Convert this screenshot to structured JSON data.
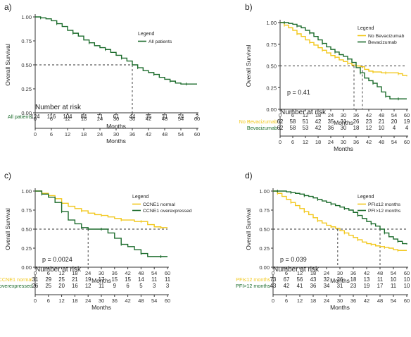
{
  "colors": {
    "green": "#1b6b2b",
    "yellow": "#f2c81d",
    "axis": "#333333",
    "ref": "#333333"
  },
  "panels": [
    {
      "id": "a",
      "letter": "a)",
      "ylabel": "Overall Survival",
      "xlabel": "Months",
      "legend_title": "Legend",
      "p_value": "",
      "risk_title": "Number at risk",
      "risk_xlabel": "Months",
      "risk_rows": [
        {
          "label": "All patients",
          "color": "green",
          "values": [
            "124",
            "116",
            "104",
            "84",
            "71",
            "61",
            "44",
            "35",
            "31",
            "24",
            "2"
          ]
        }
      ]
    },
    {
      "id": "b",
      "letter": "b)",
      "ylabel": "Overall Survival",
      "xlabel": "Months",
      "legend_title": "Legend",
      "p_value": "p = 0.41",
      "risk_title": "Number at risk",
      "risk_xlabel": "Months",
      "risk_rows": [
        {
          "label": "No Bevacizumab",
          "color": "yellow",
          "values": [
            "62",
            "58",
            "51",
            "42",
            "35",
            "31",
            "26",
            "23",
            "21",
            "20",
            "19"
          ]
        },
        {
          "label": "Bevacizumab",
          "color": "green",
          "values": [
            "62",
            "58",
            "53",
            "42",
            "36",
            "30",
            "18",
            "12",
            "10",
            "4",
            "4"
          ]
        }
      ]
    },
    {
      "id": "c",
      "letter": "c)",
      "ylabel": "Overall Survival",
      "xlabel": "Months",
      "legend_title": "Legend",
      "p_value": "p = 0.0024",
      "risk_title": "Number at risk",
      "risk_xlabel": "Months",
      "risk_rows": [
        {
          "label": "CCNE1 normal",
          "color": "yellow",
          "values": [
            "31",
            "29",
            "25",
            "21",
            "19",
            "17",
            "15",
            "15",
            "14",
            "11",
            "11"
          ]
        },
        {
          "label": "CCNE1 overexpressed",
          "color": "green",
          "values": [
            "26",
            "25",
            "20",
            "16",
            "12",
            "11",
            "9",
            "6",
            "5",
            "3",
            "3"
          ]
        }
      ]
    },
    {
      "id": "d",
      "letter": "d)",
      "ylabel": "Overall Survival",
      "xlabel": "Months",
      "legend_title": "Legend",
      "p_value": "p = 0.039",
      "risk_title": "Number at risk",
      "risk_xlabel": "Months",
      "risk_rows": [
        {
          "label": "PFI≤12 months",
          "color": "yellow",
          "values": [
            "73",
            "67",
            "56",
            "43",
            "32",
            "26",
            "18",
            "13",
            "11",
            "10",
            "10"
          ]
        },
        {
          "label": "PFI>12 months",
          "color": "green",
          "values": [
            "43",
            "42",
            "41",
            "36",
            "34",
            "31",
            "23",
            "19",
            "17",
            "11",
            "10"
          ]
        }
      ]
    }
  ],
  "chart_data": [
    {
      "type": "line",
      "panel": "a",
      "xlim": [
        0,
        60
      ],
      "ylim": [
        0,
        1
      ],
      "xticks": [
        0,
        6,
        12,
        18,
        24,
        30,
        36,
        42,
        48,
        54,
        60
      ],
      "yticks": [
        "0.00",
        "0.25",
        "0.50",
        "0.75",
        "1.00"
      ],
      "median_lines": [
        36
      ],
      "series": [
        {
          "name": "All patients",
          "color": "green",
          "x": [
            0,
            2,
            4,
            6,
            8,
            10,
            12,
            14,
            16,
            18,
            20,
            22,
            24,
            26,
            28,
            30,
            32,
            34,
            36,
            38,
            40,
            42,
            44,
            46,
            48,
            50,
            52,
            54,
            56,
            58,
            60
          ],
          "y": [
            1.0,
            0.99,
            0.98,
            0.96,
            0.93,
            0.9,
            0.86,
            0.83,
            0.8,
            0.76,
            0.73,
            0.7,
            0.68,
            0.66,
            0.63,
            0.6,
            0.57,
            0.54,
            0.5,
            0.47,
            0.44,
            0.42,
            0.4,
            0.37,
            0.35,
            0.33,
            0.31,
            0.3,
            0.3,
            0.3,
            0.3
          ]
        }
      ]
    },
    {
      "type": "line",
      "panel": "b",
      "xlim": [
        0,
        60
      ],
      "ylim": [
        0,
        1
      ],
      "xticks": [
        0,
        6,
        12,
        18,
        24,
        30,
        36,
        42,
        48,
        54,
        60
      ],
      "yticks": [
        "0.00",
        "0.25",
        "0.50",
        "0.75",
        "1.00"
      ],
      "median_lines": [
        35,
        39
      ],
      "series": [
        {
          "name": "No Bevacizumab",
          "color": "yellow",
          "x": [
            0,
            2,
            4,
            6,
            8,
            10,
            12,
            14,
            16,
            18,
            20,
            22,
            24,
            26,
            28,
            30,
            32,
            34,
            36,
            38,
            40,
            42,
            44,
            46,
            48,
            50,
            52,
            54,
            56,
            58,
            60
          ],
          "y": [
            1.0,
            0.97,
            0.94,
            0.91,
            0.87,
            0.84,
            0.8,
            0.77,
            0.74,
            0.71,
            0.68,
            0.65,
            0.62,
            0.6,
            0.57,
            0.55,
            0.53,
            0.51,
            0.5,
            0.49,
            0.46,
            0.44,
            0.43,
            0.43,
            0.42,
            0.42,
            0.42,
            0.42,
            0.41,
            0.39,
            0.38
          ]
        },
        {
          "name": "Bevacizumab",
          "color": "green",
          "x": [
            0,
            2,
            4,
            6,
            8,
            10,
            12,
            14,
            16,
            18,
            20,
            22,
            24,
            26,
            28,
            30,
            32,
            34,
            36,
            38,
            40,
            42,
            44,
            46,
            48,
            50,
            52,
            54,
            56,
            58,
            60
          ],
          "y": [
            1.0,
            1.0,
            0.99,
            0.98,
            0.96,
            0.94,
            0.91,
            0.88,
            0.84,
            0.8,
            0.76,
            0.72,
            0.69,
            0.66,
            0.63,
            0.61,
            0.58,
            0.54,
            0.48,
            0.42,
            0.36,
            0.33,
            0.3,
            0.26,
            0.2,
            0.15,
            0.12,
            0.12,
            0.12,
            0.12,
            0.12
          ]
        }
      ]
    },
    {
      "type": "line",
      "panel": "c",
      "xlim": [
        0,
        60
      ],
      "ylim": [
        0,
        1
      ],
      "xticks": [
        0,
        6,
        12,
        18,
        24,
        30,
        36,
        42,
        48,
        54,
        60
      ],
      "yticks": [
        "0.00",
        "0.25",
        "0.50",
        "0.75",
        "1.00"
      ],
      "median_lines": [
        24
      ],
      "series": [
        {
          "name": "CCNE1 normal",
          "color": "yellow",
          "x": [
            0,
            3,
            6,
            9,
            12,
            15,
            18,
            21,
            24,
            27,
            30,
            33,
            36,
            39,
            42,
            45,
            48,
            51,
            54,
            57,
            60
          ],
          "y": [
            1.0,
            0.97,
            0.94,
            0.9,
            0.84,
            0.8,
            0.77,
            0.74,
            0.71,
            0.69,
            0.68,
            0.66,
            0.64,
            0.62,
            0.62,
            0.6,
            0.6,
            0.56,
            0.53,
            0.52,
            0.52
          ]
        },
        {
          "name": "CCNE1 overexpressed",
          "color": "green",
          "x": [
            0,
            3,
            6,
            9,
            12,
            15,
            18,
            21,
            24,
            27,
            30,
            33,
            36,
            39,
            42,
            45,
            48,
            51,
            54,
            57,
            60
          ],
          "y": [
            1.0,
            0.96,
            0.92,
            0.85,
            0.73,
            0.62,
            0.57,
            0.52,
            0.5,
            0.5,
            0.5,
            0.45,
            0.38,
            0.3,
            0.27,
            0.23,
            0.18,
            0.14,
            0.14,
            0.14,
            0.14
          ]
        }
      ]
    },
    {
      "type": "line",
      "panel": "d",
      "xlim": [
        0,
        60
      ],
      "ylim": [
        0,
        1
      ],
      "xticks": [
        0,
        6,
        12,
        18,
        24,
        30,
        36,
        42,
        48,
        54,
        60
      ],
      "yticks": [
        "0.00",
        "0.25",
        "0.50",
        "0.75",
        "1.00"
      ],
      "median_lines": [
        29,
        48
      ],
      "series": [
        {
          "name": "PFI≤12 months",
          "color": "yellow",
          "x": [
            0,
            2,
            4,
            6,
            8,
            10,
            12,
            14,
            16,
            18,
            20,
            22,
            24,
            26,
            28,
            30,
            32,
            34,
            36,
            38,
            40,
            42,
            44,
            46,
            48,
            50,
            52,
            54,
            56,
            58,
            60
          ],
          "y": [
            1.0,
            0.97,
            0.93,
            0.89,
            0.85,
            0.81,
            0.77,
            0.73,
            0.69,
            0.65,
            0.61,
            0.58,
            0.55,
            0.53,
            0.51,
            0.48,
            0.45,
            0.42,
            0.39,
            0.36,
            0.33,
            0.31,
            0.3,
            0.28,
            0.27,
            0.26,
            0.25,
            0.23,
            0.22,
            0.22,
            0.22
          ]
        },
        {
          "name": "PFI>12 months",
          "color": "green",
          "x": [
            0,
            2,
            4,
            6,
            8,
            10,
            12,
            14,
            16,
            18,
            20,
            22,
            24,
            26,
            28,
            30,
            32,
            34,
            36,
            38,
            40,
            42,
            44,
            46,
            48,
            50,
            52,
            54,
            56,
            58,
            60
          ],
          "y": [
            1.0,
            1.0,
            1.0,
            0.99,
            0.98,
            0.97,
            0.96,
            0.94,
            0.93,
            0.91,
            0.89,
            0.87,
            0.85,
            0.83,
            0.81,
            0.79,
            0.77,
            0.75,
            0.72,
            0.68,
            0.64,
            0.6,
            0.57,
            0.54,
            0.5,
            0.45,
            0.4,
            0.37,
            0.34,
            0.31,
            0.3
          ]
        }
      ]
    }
  ]
}
